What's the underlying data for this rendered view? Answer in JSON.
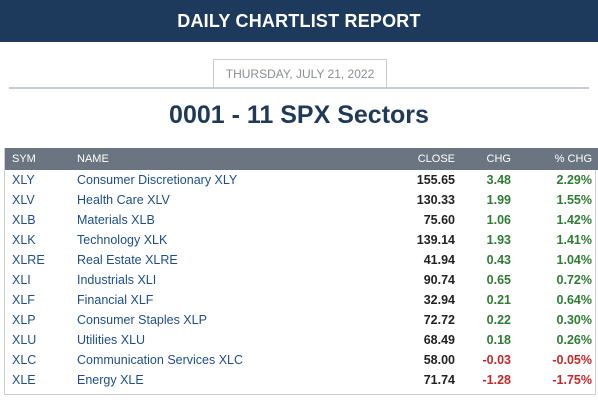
{
  "header": {
    "title": "DAILY CHARTLIST REPORT",
    "bg_color": "#1d3a5c"
  },
  "date": "THURSDAY, JULY 21, 2022",
  "list_title": "0001 - 11 SPX Sectors",
  "table": {
    "columns": [
      "SYM",
      "NAME",
      "CLOSE",
      "CHG",
      "% CHG"
    ],
    "rows": [
      {
        "sym": "XLY",
        "name": "Consumer Discretionary XLY",
        "close": "155.65",
        "chg": "3.48",
        "pct": "2.29%",
        "dir": "pos"
      },
      {
        "sym": "XLV",
        "name": "Health Care XLV",
        "close": "130.33",
        "chg": "1.99",
        "pct": "1.55%",
        "dir": "pos"
      },
      {
        "sym": "XLB",
        "name": "Materials XLB",
        "close": "75.60",
        "chg": "1.06",
        "pct": "1.42%",
        "dir": "pos"
      },
      {
        "sym": "XLK",
        "name": "Technology XLK",
        "close": "139.14",
        "chg": "1.93",
        "pct": "1.41%",
        "dir": "pos"
      },
      {
        "sym": "XLRE",
        "name": "Real Estate XLRE",
        "close": "41.94",
        "chg": "0.43",
        "pct": "1.04%",
        "dir": "pos"
      },
      {
        "sym": "XLI",
        "name": "Industrials XLI",
        "close": "90.74",
        "chg": "0.65",
        "pct": "0.72%",
        "dir": "pos"
      },
      {
        "sym": "XLF",
        "name": "Financial XLF",
        "close": "32.94",
        "chg": "0.21",
        "pct": "0.64%",
        "dir": "pos"
      },
      {
        "sym": "XLP",
        "name": "Consumer Staples XLP",
        "close": "72.72",
        "chg": "0.22",
        "pct": "0.30%",
        "dir": "pos"
      },
      {
        "sym": "XLU",
        "name": "Utilities XLU",
        "close": "68.49",
        "chg": "0.18",
        "pct": "0.26%",
        "dir": "pos"
      },
      {
        "sym": "XLC",
        "name": "Communication Services XLC",
        "close": "58.00",
        "chg": "-0.03",
        "pct": "-0.05%",
        "dir": "neg"
      },
      {
        "sym": "XLE",
        "name": "Energy XLE",
        "close": "71.74",
        "chg": "-1.28",
        "pct": "-1.75%",
        "dir": "neg"
      }
    ]
  },
  "colors": {
    "positive": "#2e7d32",
    "negative": "#c62828",
    "symbol": "#1f4e8c",
    "table_header": "#6b7581"
  }
}
